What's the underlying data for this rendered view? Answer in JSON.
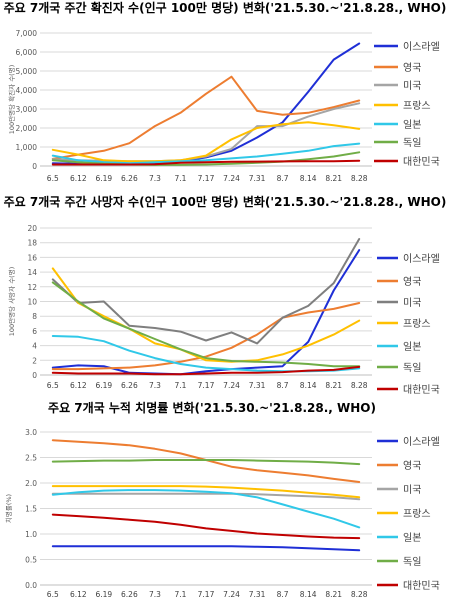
{
  "chart_data": [
    {
      "type": "line",
      "title": "주요 7개국 주간 확진자 수(인구 100만 명당) 변화('21.5.30.~'21.8.28., WHO)",
      "ylabel": "100만명당 확진자 수(명)",
      "ylim": [
        0,
        7000
      ],
      "yticks": [
        "0",
        "1,000",
        "2,000",
        "3,000",
        "4,000",
        "5,000",
        "6,000",
        "7,000"
      ],
      "categories": [
        "6.5",
        "6.12",
        "6.19",
        "6.26",
        "7.3",
        "7.1",
        "7.17",
        "7.24",
        "7.31",
        "8.7",
        "8.14",
        "8.21",
        "8.28"
      ],
      "grid": true,
      "legend": "right",
      "series": [
        {
          "name": "이스라엘",
          "color": "#1f2fd6",
          "values": [
            150,
            120,
            80,
            80,
            130,
            250,
            450,
            800,
            1500,
            2300,
            3900,
            5600,
            6450
          ]
        },
        {
          "name": "영국",
          "color": "#ed7d31",
          "values": [
            380,
            600,
            800,
            1200,
            2100,
            2800,
            3800,
            4700,
            2900,
            2700,
            2800,
            3100,
            3450
          ]
        },
        {
          "name": "미국",
          "color": "#a5a5a5",
          "values": [
            350,
            300,
            280,
            250,
            250,
            300,
            500,
            900,
            2100,
            2100,
            2600,
            3000,
            3300
          ]
        },
        {
          "name": "프랑스",
          "color": "#ffc000",
          "values": [
            850,
            600,
            300,
            250,
            250,
            300,
            550,
            1400,
            2000,
            2200,
            2300,
            2150,
            1950
          ]
        },
        {
          "name": "일본",
          "color": "#30c8e8",
          "values": [
            550,
            300,
            200,
            150,
            200,
            250,
            300,
            400,
            500,
            650,
            800,
            1050,
            1180
          ]
        },
        {
          "name": "독일",
          "color": "#70ad47",
          "values": [
            300,
            200,
            120,
            80,
            60,
            60,
            80,
            120,
            170,
            230,
            350,
            500,
            720
          ]
        },
        {
          "name": "대한민국",
          "color": "#c00000",
          "values": [
            80,
            80,
            80,
            80,
            90,
            170,
            200,
            220,
            230,
            240,
            250,
            250,
            280
          ]
        }
      ]
    },
    {
      "type": "line",
      "title": "주요 7개국 주간 사망자 수(인구 100만 명당) 변화('21.5.30.~'21.8.28., WHO)",
      "ylabel": "100만명당 사망자 수(명)",
      "ylim": [
        0,
        20
      ],
      "yticks": [
        "0",
        "2",
        "4",
        "6",
        "8",
        "10",
        "12",
        "14",
        "16",
        "18",
        "20"
      ],
      "categories": [
        "6.5",
        "6.12",
        "6.19",
        "6.26",
        "7.3",
        "7.1",
        "7.17",
        "7.24",
        "7.31",
        "8.7",
        "8.14",
        "8.21",
        "8.28"
      ],
      "grid": true,
      "legend": "right",
      "series": [
        {
          "name": "이스라엘",
          "color": "#1f2fd6",
          "values": [
            1.0,
            1.3,
            1.2,
            0.3,
            0.2,
            0.1,
            0.5,
            0.8,
            1.0,
            1.2,
            4.5,
            11.5,
            17.0
          ]
        },
        {
          "name": "영국",
          "color": "#ed7d31",
          "values": [
            0.8,
            0.8,
            0.9,
            1.0,
            1.3,
            1.8,
            2.5,
            3.7,
            5.5,
            7.8,
            8.5,
            9.0,
            9.8
          ]
        },
        {
          "name": "미국",
          "color": "#7f7f7f",
          "values": [
            13.0,
            9.8,
            10.0,
            6.7,
            6.4,
            5.9,
            4.7,
            5.8,
            4.3,
            7.8,
            9.4,
            12.5,
            18.5
          ]
        },
        {
          "name": "프랑스",
          "color": "#ffc000",
          "values": [
            14.5,
            9.8,
            8.0,
            6.3,
            4.3,
            3.5,
            2.0,
            1.8,
            2.0,
            2.8,
            4.0,
            5.5,
            7.4
          ]
        },
        {
          "name": "일본",
          "color": "#30c8e8",
          "values": [
            5.3,
            5.2,
            4.6,
            3.3,
            2.3,
            1.5,
            1.0,
            0.8,
            0.6,
            0.5,
            0.5,
            0.6,
            0.9
          ]
        },
        {
          "name": "독일",
          "color": "#70ad47",
          "values": [
            12.6,
            10.0,
            7.7,
            6.3,
            4.9,
            3.5,
            2.3,
            1.9,
            1.8,
            1.7,
            1.5,
            1.2,
            1.2
          ]
        },
        {
          "name": "대한민국",
          "color": "#c00000",
          "values": [
            0.3,
            0.2,
            0.2,
            0.2,
            0.1,
            0.1,
            0.2,
            0.3,
            0.3,
            0.4,
            0.6,
            0.7,
            1.1
          ]
        }
      ]
    },
    {
      "type": "line",
      "title": "주요 7개국 누적 치명률 변화('21.5.30.~'21.8.28., WHO)",
      "ylabel": "치명률(%)",
      "ylim": [
        0,
        3.0
      ],
      "yticks": [
        "0.0",
        "0.5",
        "1.0",
        "1.5",
        "2.0",
        "2.5",
        "3.0"
      ],
      "categories": [
        "6.5",
        "6.12",
        "6.19",
        "6.26",
        "7.3",
        "7.1",
        "7.17",
        "7.24",
        "7.31",
        "8.7",
        "8.14",
        "8.21",
        "8.28"
      ],
      "grid": true,
      "legend": "right",
      "series": [
        {
          "name": "이스라엘",
          "color": "#1f2fd6",
          "values": [
            0.76,
            0.76,
            0.76,
            0.76,
            0.76,
            0.76,
            0.76,
            0.76,
            0.75,
            0.74,
            0.72,
            0.7,
            0.68
          ]
        },
        {
          "name": "영국",
          "color": "#ed7d31",
          "values": [
            2.84,
            2.81,
            2.78,
            2.74,
            2.67,
            2.58,
            2.45,
            2.32,
            2.25,
            2.2,
            2.15,
            2.08,
            2.02
          ]
        },
        {
          "name": "미국",
          "color": "#a5a5a5",
          "values": [
            1.79,
            1.79,
            1.79,
            1.79,
            1.79,
            1.79,
            1.79,
            1.79,
            1.78,
            1.76,
            1.74,
            1.72,
            1.68
          ]
        },
        {
          "name": "프랑스",
          "color": "#ffc000",
          "values": [
            1.94,
            1.94,
            1.94,
            1.94,
            1.94,
            1.94,
            1.93,
            1.91,
            1.88,
            1.85,
            1.81,
            1.77,
            1.72
          ]
        },
        {
          "name": "일본",
          "color": "#30c8e8",
          "values": [
            1.77,
            1.82,
            1.85,
            1.86,
            1.86,
            1.85,
            1.83,
            1.8,
            1.72,
            1.58,
            1.44,
            1.3,
            1.13
          ]
        },
        {
          "name": "독일",
          "color": "#70ad47",
          "values": [
            2.42,
            2.43,
            2.44,
            2.44,
            2.45,
            2.45,
            2.45,
            2.45,
            2.44,
            2.43,
            2.42,
            2.4,
            2.37
          ]
        },
        {
          "name": "대한민국",
          "color": "#c00000",
          "values": [
            1.38,
            1.35,
            1.32,
            1.28,
            1.24,
            1.18,
            1.11,
            1.06,
            1.01,
            0.98,
            0.95,
            0.93,
            0.92
          ]
        }
      ]
    }
  ]
}
